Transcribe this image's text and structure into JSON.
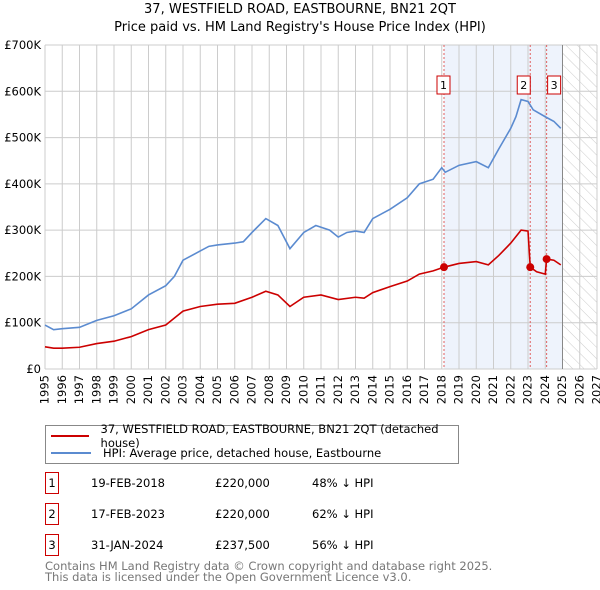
{
  "chart_data": {
    "type": "line",
    "title": "37, WESTFIELD ROAD, EASTBOURNE, BN21 2QT",
    "subtitle": "Price paid vs. HM Land Registry's House Price Index (HPI)",
    "xlim": [
      1995,
      2027
    ],
    "ylim": [
      0,
      700000
    ],
    "x_ticks": [
      "1995",
      "1996",
      "1997",
      "1998",
      "1999",
      "2000",
      "2001",
      "2002",
      "2003",
      "2004",
      "2005",
      "2006",
      "2007",
      "2008",
      "2009",
      "2010",
      "2011",
      "2012",
      "2013",
      "2014",
      "2015",
      "2016",
      "2017",
      "2018",
      "2019",
      "2020",
      "2021",
      "2022",
      "2023",
      "2024",
      "2025",
      "2026",
      "2027"
    ],
    "y_ticks": [
      {
        "v": 0,
        "label": "£0"
      },
      {
        "v": 100000,
        "label": "£100K"
      },
      {
        "v": 200000,
        "label": "£200K"
      },
      {
        "v": 300000,
        "label": "£300K"
      },
      {
        "v": 400000,
        "label": "£400K"
      },
      {
        "v": 500000,
        "label": "£500K"
      },
      {
        "v": 600000,
        "label": "£600K"
      },
      {
        "v": 700000,
        "label": "£700K"
      }
    ],
    "grid": true,
    "forecast_hatch_from": 2025,
    "series": [
      {
        "name": "37, WESTFIELD ROAD, EASTBOURNE, BN21 2QT (detached house)",
        "color": "#cc0000",
        "x": [
          1995,
          1995.5,
          1996,
          1997,
          1998,
          1999,
          2000,
          2001,
          2002,
          2003,
          2004,
          2005,
          2006,
          2007,
          2007.8,
          2008.5,
          2009.2,
          2010,
          2011,
          2012,
          2013,
          2013.5,
          2014,
          2015,
          2016,
          2016.7,
          2017.5,
          2018.13,
          2019,
          2020,
          2020.7,
          2021.3,
          2022,
          2022.6,
          2023.0,
          2023.13,
          2023.5,
          2024.0,
          2024.08,
          2024.5,
          2024.9
        ],
        "y": [
          48000,
          45000,
          45000,
          47000,
          55000,
          60000,
          70000,
          85000,
          95000,
          125000,
          135000,
          140000,
          142000,
          155000,
          168000,
          160000,
          135000,
          155000,
          160000,
          150000,
          155000,
          153000,
          165000,
          178000,
          190000,
          205000,
          212000,
          220000,
          228000,
          232000,
          225000,
          245000,
          272000,
          300000,
          298000,
          220000,
          210000,
          205000,
          237500,
          235000,
          225000
        ]
      },
      {
        "name": "HPI: Average price, detached house, Eastbourne",
        "color": "#5b8bd0",
        "x": [
          1995,
          1995.5,
          1996,
          1997,
          1998,
          1999,
          2000,
          2001,
          2002,
          2002.5,
          2003,
          2004,
          2004.5,
          2005,
          2006,
          2006.5,
          2007,
          2007.8,
          2008.5,
          2009.2,
          2010,
          2010.7,
          2011.5,
          2012,
          2012.5,
          2013,
          2013.5,
          2014,
          2015,
          2016,
          2016.7,
          2017.5,
          2018,
          2018.2,
          2019,
          2020,
          2020.7,
          2021.3,
          2022,
          2022.3,
          2022.6,
          2023,
          2023.3,
          2024,
          2024.5,
          2024.9
        ],
        "y": [
          95000,
          85000,
          87000,
          90000,
          105000,
          115000,
          130000,
          160000,
          180000,
          200000,
          235000,
          255000,
          265000,
          268000,
          272000,
          275000,
          295000,
          325000,
          310000,
          260000,
          295000,
          310000,
          300000,
          285000,
          295000,
          298000,
          295000,
          325000,
          345000,
          370000,
          400000,
          410000,
          435000,
          425000,
          440000,
          448000,
          435000,
          475000,
          520000,
          545000,
          582000,
          578000,
          560000,
          545000,
          535000,
          520000
        ]
      }
    ],
    "sales": [
      {
        "id": "1",
        "x": 2018.13,
        "date": "19-FEB-2018",
        "price": "£220,000",
        "value": 220000,
        "hpi": "48% ↓ HPI"
      },
      {
        "id": "2",
        "x": 2023.13,
        "date": "17-FEB-2023",
        "price": "£220,000",
        "value": 220000,
        "hpi": "62% ↓ HPI"
      },
      {
        "id": "3",
        "x": 2024.08,
        "date": "31-JAN-2024",
        "price": "£237,500",
        "value": 237500,
        "hpi": "56% ↓ HPI"
      }
    ],
    "footer1": "Contains HM Land Registry data © Crown copyright and database right 2025.",
    "footer2": "This data is licensed under the Open Government Licence v3.0."
  }
}
